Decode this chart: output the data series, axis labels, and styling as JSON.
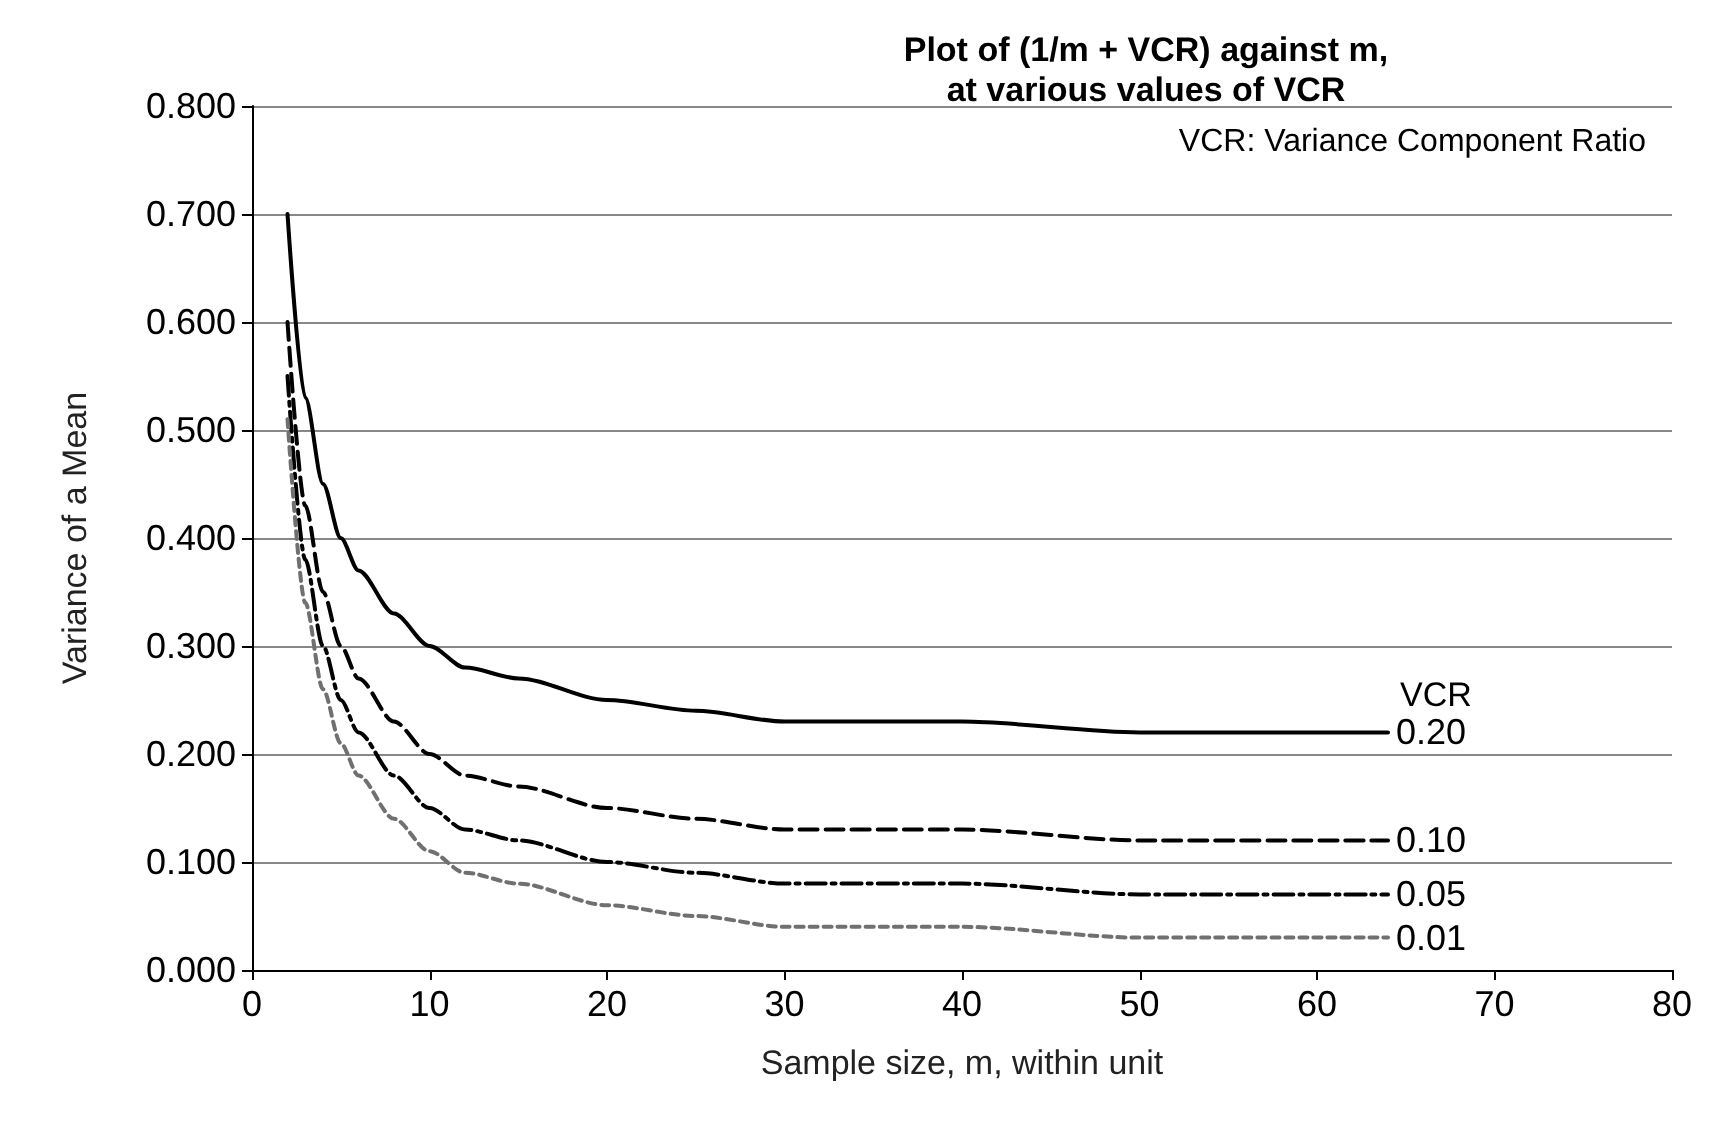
{
  "chart_data": {
    "type": "line",
    "title": "Plot of (1/m + VCR) against m,\nat various values of VCR",
    "xlabel": "Sample size, m, within unit",
    "ylabel": "Variance of a Mean",
    "annotations": [
      "VCR: Variance Component Ratio",
      "VCR"
    ],
    "x": [
      2,
      3,
      4,
      5,
      6,
      8,
      10,
      12,
      15,
      20,
      25,
      30,
      40,
      50,
      64
    ],
    "series": [
      {
        "name": "0.20",
        "color": "#000000",
        "line_style": "solid",
        "values": [
          0.7,
          0.53,
          0.45,
          0.4,
          0.37,
          0.33,
          0.3,
          0.28,
          0.27,
          0.25,
          0.24,
          0.23,
          0.23,
          0.22,
          0.22
        ]
      },
      {
        "name": "0.10",
        "color": "#000000",
        "line_style": "dashed",
        "values": [
          0.6,
          0.43,
          0.35,
          0.3,
          0.27,
          0.23,
          0.2,
          0.18,
          0.17,
          0.15,
          0.14,
          0.13,
          0.13,
          0.12,
          0.12
        ]
      },
      {
        "name": "0.05",
        "color": "#000000",
        "line_style": "dashdot",
        "values": [
          0.55,
          0.38,
          0.3,
          0.25,
          0.22,
          0.18,
          0.15,
          0.13,
          0.12,
          0.1,
          0.09,
          0.08,
          0.08,
          0.07,
          0.07
        ]
      },
      {
        "name": "0.01",
        "color": "#707070",
        "line_style": "dotted",
        "values": [
          0.51,
          0.34,
          0.26,
          0.21,
          0.18,
          0.14,
          0.11,
          0.09,
          0.08,
          0.06,
          0.05,
          0.04,
          0.04,
          0.03,
          0.03
        ]
      }
    ],
    "xlim": [
      0,
      80
    ],
    "xticks": [
      0,
      10,
      20,
      30,
      40,
      50,
      60,
      70,
      80
    ],
    "ylim": [
      0,
      0.8
    ],
    "yticks": [
      {
        "value": 0,
        "label": "0.000"
      },
      {
        "value": 0.1,
        "label": "0.100"
      },
      {
        "value": 0.2,
        "label": "0.200"
      },
      {
        "value": 0.3,
        "label": "0.300"
      },
      {
        "value": 0.4,
        "label": "0.400"
      },
      {
        "value": 0.5,
        "label": "0.500"
      },
      {
        "value": 0.6,
        "label": "0.600"
      },
      {
        "value": 0.7,
        "label": "0.700"
      },
      {
        "value": 0.8,
        "label": "0.800"
      }
    ],
    "grid": "y",
    "legend": false,
    "marker": "none"
  }
}
